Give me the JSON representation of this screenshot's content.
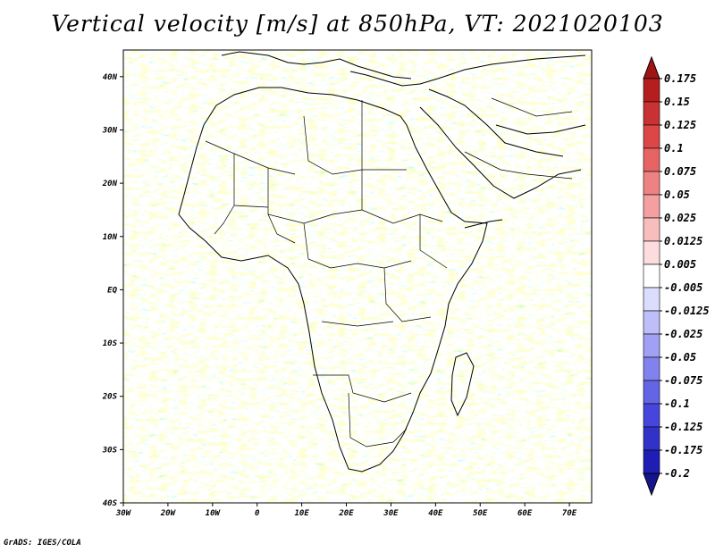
{
  "title": "Vertical velocity [m/s] at 850hPa, VT: 2021020103",
  "footer": "GrADS: IGES/COLA",
  "map": {
    "region": "Africa and surrounding oceans",
    "projection": "lat-lon",
    "lon_range": [
      -30,
      75
    ],
    "lat_range": [
      -40,
      45
    ],
    "lat_tick_labels": [
      {
        "value": 40,
        "label": "40N"
      },
      {
        "value": 30,
        "label": "30N"
      },
      {
        "value": 20,
        "label": "20N"
      },
      {
        "value": 10,
        "label": "10N"
      },
      {
        "value": 0,
        "label": "EQ"
      },
      {
        "value": -10,
        "label": "10S"
      },
      {
        "value": -20,
        "label": "20S"
      },
      {
        "value": -30,
        "label": "30S"
      },
      {
        "value": -40,
        "label": "40S"
      }
    ],
    "lon_tick_labels": [
      {
        "value": -30,
        "label": "30W"
      },
      {
        "value": -20,
        "label": "20W"
      },
      {
        "value": -10,
        "label": "10W"
      },
      {
        "value": 0,
        "label": "0"
      },
      {
        "value": 10,
        "label": "10E"
      },
      {
        "value": 20,
        "label": "20E"
      },
      {
        "value": 30,
        "label": "30E"
      },
      {
        "value": 40,
        "label": "40E"
      },
      {
        "value": 50,
        "label": "50E"
      },
      {
        "value": 60,
        "label": "60E"
      },
      {
        "value": 70,
        "label": "70E"
      }
    ]
  },
  "colorbar": {
    "labels": [
      "0.175",
      "0.15",
      "0.125",
      "0.1",
      "0.075",
      "0.05",
      "0.025",
      "0.0125",
      "0.005",
      "-0.005",
      "-0.0125",
      "-0.025",
      "-0.05",
      "-0.075",
      "-0.1",
      "-0.125",
      "-0.175",
      "-0.2"
    ],
    "colors": [
      "#b41e1e",
      "#c83232",
      "#dc4646",
      "#e66464",
      "#ee8282",
      "#f4a0a0",
      "#f8bebe",
      "#fcdcdc",
      "#ffffff",
      "#dcdcfc",
      "#bebef8",
      "#a0a0f4",
      "#8282ee",
      "#6464e6",
      "#4646dc",
      "#3232c8",
      "#1e1eb4"
    ],
    "top_arrow_color": "#a01414",
    "bottom_arrow_color": "#14148c"
  }
}
